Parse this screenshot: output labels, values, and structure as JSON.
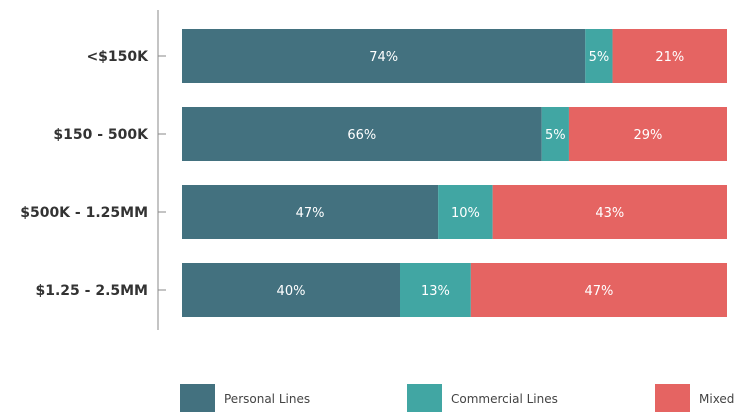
{
  "chart_data": {
    "type": "bar",
    "orientation": "horizontal",
    "stacked": true,
    "categories": [
      "<$150K",
      "$150 - 500K",
      "$500K - 1.25MM",
      "$1.25 - 2.5MM"
    ],
    "series": [
      {
        "name": "Personal Lines",
        "color": "#43717f",
        "values": [
          74,
          66,
          47,
          40
        ],
        "labels": [
          "74%",
          "66%",
          "47%",
          "40%"
        ]
      },
      {
        "name": "Commercial Lines",
        "color": "#41a6a3",
        "values": [
          5,
          5,
          10,
          13
        ],
        "labels": [
          "5%",
          "5%",
          "10%",
          "13%"
        ]
      },
      {
        "name": "Mixed",
        "color": "#e56462",
        "values": [
          21,
          29,
          43,
          47
        ],
        "labels": [
          "21%",
          "29%",
          "43%",
          "47%"
        ]
      }
    ],
    "xlim": [
      0,
      100
    ],
    "grid": false,
    "legend_position": "bottom"
  }
}
